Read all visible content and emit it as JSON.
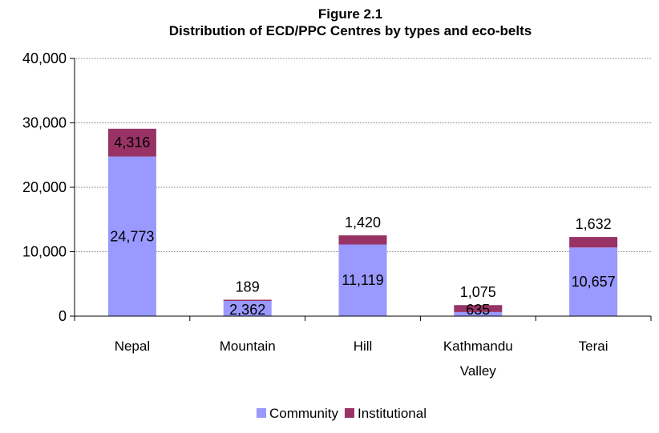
{
  "chart_data": {
    "type": "bar",
    "stacked": true,
    "title_line1": "Figure 2.1",
    "title_line2": "Distribution of ECD/PPC Centres by types and eco-belts",
    "categories": [
      "Nepal",
      "Mountain",
      "Hill",
      "Kathmandu",
      "Terai"
    ],
    "category_second_lines": [
      "",
      "",
      "",
      "Valley",
      ""
    ],
    "series": [
      {
        "name": "Community",
        "color": "#9999ff",
        "values": [
          24773,
          2362,
          11119,
          635,
          10657
        ],
        "labels": [
          "24,773",
          "2,362",
          "11,119",
          "635",
          "10,657"
        ]
      },
      {
        "name": "Institutional",
        "color": "#993366",
        "values": [
          4316,
          189,
          1420,
          1075,
          1632
        ],
        "labels": [
          "4,316",
          "189",
          "1,420",
          "1,075",
          "1,632"
        ]
      }
    ],
    "ylim": [
      0,
      40000
    ],
    "yticks": [
      0,
      10000,
      20000,
      30000,
      40000
    ],
    "ytick_labels": [
      "0",
      "10,000",
      "20,000",
      "30,000",
      "40,000"
    ],
    "grid": true,
    "legend_position": "bottom"
  }
}
